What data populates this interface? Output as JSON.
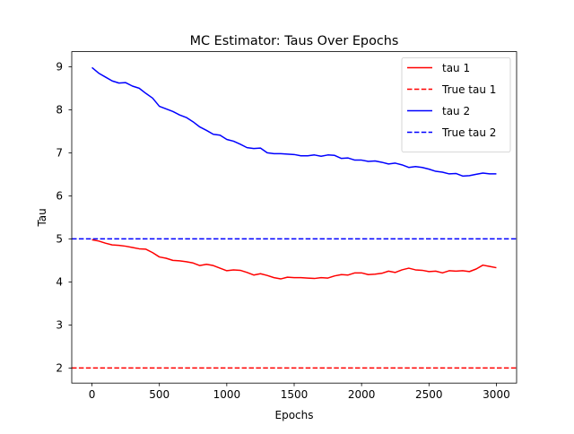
{
  "chart_data": {
    "type": "line",
    "title": "MC Estimator: Taus Over Epochs",
    "xlabel": "Epochs",
    "ylabel": "Tau",
    "xlim": [
      -150,
      3150
    ],
    "ylim": [
      1.65,
      9.35
    ],
    "xticks": [
      0,
      500,
      1000,
      1500,
      2000,
      2500,
      3000
    ],
    "yticks": [
      2,
      3,
      4,
      5,
      6,
      7,
      8,
      9
    ],
    "grid": false,
    "legend_position": "top-right",
    "series": [
      {
        "name": "tau 1",
        "color": "#ff0000",
        "style": "solid",
        "x": [
          0,
          50,
          100,
          150,
          200,
          250,
          300,
          350,
          400,
          450,
          500,
          550,
          600,
          650,
          700,
          750,
          800,
          850,
          900,
          950,
          1000,
          1050,
          1100,
          1150,
          1200,
          1250,
          1300,
          1350,
          1400,
          1450,
          1500,
          1550,
          1600,
          1650,
          1700,
          1750,
          1800,
          1850,
          1900,
          1950,
          2000,
          2050,
          2100,
          2150,
          2200,
          2250,
          2300,
          2350,
          2400,
          2450,
          2500,
          2550,
          2600,
          2650,
          2700,
          2750,
          2800,
          2850,
          2900,
          2950,
          3000
        ],
        "y": [
          4.98,
          4.95,
          4.9,
          4.86,
          4.85,
          4.83,
          4.8,
          4.77,
          4.76,
          4.68,
          4.58,
          4.55,
          4.5,
          4.49,
          4.47,
          4.44,
          4.38,
          4.41,
          4.38,
          4.32,
          4.26,
          4.28,
          4.27,
          4.22,
          4.16,
          4.19,
          4.15,
          4.1,
          4.07,
          4.11,
          4.1,
          4.1,
          4.09,
          4.08,
          4.1,
          4.09,
          4.14,
          4.17,
          4.16,
          4.21,
          4.21,
          4.17,
          4.18,
          4.2,
          4.25,
          4.22,
          4.28,
          4.32,
          4.28,
          4.27,
          4.24,
          4.25,
          4.21,
          4.26,
          4.25,
          4.26,
          4.24,
          4.3,
          4.39,
          4.36,
          4.33
        ]
      },
      {
        "name": "True tau 1",
        "color": "#ff0000",
        "style": "dashed",
        "hline": 2
      },
      {
        "name": "tau 2",
        "color": "#0000ff",
        "style": "solid",
        "x": [
          0,
          50,
          100,
          150,
          200,
          250,
          300,
          350,
          400,
          450,
          500,
          550,
          600,
          650,
          700,
          750,
          800,
          850,
          900,
          950,
          1000,
          1050,
          1100,
          1150,
          1200,
          1250,
          1300,
          1350,
          1400,
          1450,
          1500,
          1550,
          1600,
          1650,
          1700,
          1750,
          1800,
          1850,
          1900,
          1950,
          2000,
          2050,
          2100,
          2150,
          2200,
          2250,
          2300,
          2350,
          2400,
          2450,
          2500,
          2550,
          2600,
          2650,
          2700,
          2750,
          2800,
          2850,
          2900,
          2950,
          3000
        ],
        "y": [
          8.98,
          8.85,
          8.76,
          8.67,
          8.62,
          8.63,
          8.55,
          8.5,
          8.38,
          8.27,
          8.08,
          8.02,
          7.96,
          7.88,
          7.82,
          7.72,
          7.6,
          7.52,
          7.43,
          7.41,
          7.31,
          7.27,
          7.2,
          7.12,
          7.1,
          7.11,
          7.0,
          6.98,
          6.98,
          6.97,
          6.96,
          6.93,
          6.93,
          6.95,
          6.92,
          6.95,
          6.94,
          6.87,
          6.88,
          6.83,
          6.83,
          6.8,
          6.81,
          6.78,
          6.74,
          6.76,
          6.72,
          6.66,
          6.68,
          6.66,
          6.62,
          6.57,
          6.55,
          6.51,
          6.52,
          6.46,
          6.47,
          6.5,
          6.53,
          6.51,
          6.51
        ]
      },
      {
        "name": "True tau 2",
        "color": "#0000ff",
        "style": "dashed",
        "hline": 5
      }
    ]
  }
}
